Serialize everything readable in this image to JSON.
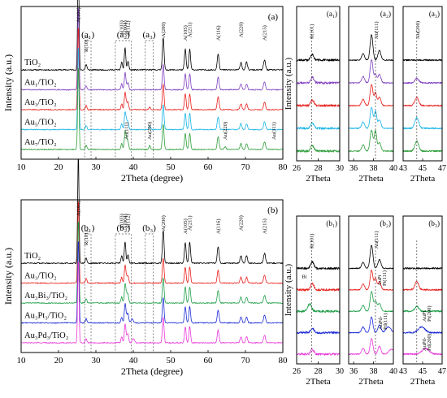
{
  "chart_data": [
    {
      "id": "a-main",
      "type": "line",
      "panel_label": "(a)",
      "xlabel": "2Theta (degree)",
      "ylabel": "Intensity (a.u.)",
      "xlim": [
        10,
        80
      ],
      "xticks": [
        "10",
        "20",
        "30",
        "40",
        "50",
        "60",
        "70",
        "80"
      ],
      "series": [
        {
          "name": "TiO₂",
          "color": "#000000"
        },
        {
          "name": "Au₁/TiO₂",
          "color": "#7f3fbf"
        },
        {
          "name": "Au₃/TiO₂",
          "color": "#e8201c"
        },
        {
          "name": "Au₅/TiO₂",
          "color": "#17b3e6"
        },
        {
          "name": "Au₇/TiO₂",
          "color": "#2e9e3a"
        }
      ],
      "region_labels": [
        "(a₁)",
        "(a₂)",
        "(a₃)"
      ],
      "regions": [
        [
          27,
          28.7
        ],
        [
          35.2,
          39.5
        ],
        [
          43.2,
          45.3
        ]
      ],
      "peaks": [
        {
          "label": "A(101)",
          "x": 25.3
        },
        {
          "label": "R(101)",
          "x": 27.4
        },
        {
          "label": "A(103)",
          "x": 36.9
        },
        {
          "label": "A(004)",
          "x": 37.8
        },
        {
          "label": "A(112)",
          "x": 38.6
        },
        {
          "label": "A(200)",
          "x": 48.0
        },
        {
          "label": "A(105)",
          "x": 53.9
        },
        {
          "label": "A(211)",
          "x": 55.1
        },
        {
          "label": "A(116)",
          "x": 62.7
        },
        {
          "label": "A(220)",
          "x": 68.8
        },
        {
          "label": "A(215)",
          "x": 75.1
        }
      ],
      "sub_peaks": [
        {
          "label": "Au(111)",
          "x": 38.2
        },
        {
          "label": "Au(200)",
          "x": 44.4
        },
        {
          "label": "Au(220)",
          "x": 64.6
        },
        {
          "label": "Au(311)",
          "x": 77.6
        }
      ]
    },
    {
      "id": "a1",
      "type": "line",
      "panel_label": "(a₁)",
      "xlabel": "2Theta",
      "ylabel": "Intensity (a.u.)",
      "xlim": [
        26,
        30
      ],
      "xticks": [
        "26",
        "28",
        "30"
      ],
      "peak_label": "R(101)",
      "marker_x": 27.4
    },
    {
      "id": "a2",
      "type": "line",
      "panel_label": "(a₂)",
      "xlabel": "2Theta",
      "ylabel": "",
      "xlim": [
        35.5,
        40
      ],
      "xticks": [
        "36",
        "38",
        "40"
      ],
      "peak_label": "Au(111)",
      "marker_x": 38.2
    },
    {
      "id": "a3",
      "type": "line",
      "panel_label": "(a₃)",
      "xlabel": "2Theta",
      "ylabel": "",
      "xlim": [
        43,
        47
      ],
      "xticks": [
        "43",
        "45",
        "47"
      ],
      "peak_label": "Au(200)",
      "marker_x": 44.4
    },
    {
      "id": "b-main",
      "type": "line",
      "panel_label": "(b)",
      "xlabel": "2Theta (degree)",
      "ylabel": "Intensity (a.u.)",
      "xlim": [
        10,
        80
      ],
      "xticks": [
        "10",
        "20",
        "30",
        "40",
        "50",
        "60",
        "70",
        "80"
      ],
      "series": [
        {
          "name": "TiO₂",
          "color": "#000000"
        },
        {
          "name": "Au₃/TiO₂",
          "color": "#e8201c"
        },
        {
          "name": "Au₃Bi₃/TiO₂",
          "color": "#1f9e48"
        },
        {
          "name": "Au₃Pt₃/TiO₂",
          "color": "#1c2bd6"
        },
        {
          "name": "Au₃Pd₃/TiO₂",
          "color": "#e836d8"
        }
      ],
      "region_labels": [
        "(b₁)",
        "(b₂)",
        "(b₃)"
      ],
      "regions": [
        [
          27,
          28.7
        ],
        [
          35.2,
          39.5
        ],
        [
          43.2,
          45.3
        ]
      ],
      "peaks": [
        {
          "label": "A(101)",
          "x": 25.3
        },
        {
          "label": "R(101)",
          "x": 27.4
        },
        {
          "label": "A(103)",
          "x": 36.9
        },
        {
          "label": "A(004)",
          "x": 37.8
        },
        {
          "label": "A(112)",
          "x": 38.6
        },
        {
          "label": "A(200)",
          "x": 48.0
        },
        {
          "label": "A(105)",
          "x": 53.9
        },
        {
          "label": "A(211)",
          "x": 55.1
        },
        {
          "label": "A(116)",
          "x": 62.7
        },
        {
          "label": "A(220)",
          "x": 68.8
        },
        {
          "label": "A(215)",
          "x": 75.1
        }
      ]
    },
    {
      "id": "b1",
      "type": "line",
      "panel_label": "(b₁)",
      "xlabel": "2Theta",
      "ylabel": "Intensity (a.u.)",
      "xlim": [
        26,
        30
      ],
      "xticks": [
        "26",
        "28",
        "30"
      ],
      "peak_label": "R(101)",
      "extra_label": "Bi",
      "marker_x": 27.4
    },
    {
      "id": "b2",
      "type": "line",
      "panel_label": "(b₂)",
      "xlabel": "2Theta",
      "ylabel": "",
      "xlim": [
        35.5,
        40
      ],
      "xticks": [
        "36",
        "38",
        "40"
      ],
      "peak_label": "Au(111)",
      "extra_labels": [
        "AuPt",
        "Pt(111)",
        "AuPd-",
        "Pd(111)"
      ],
      "marker_x": 38.2
    },
    {
      "id": "b3",
      "type": "line",
      "panel_label": "(b₃)",
      "xlabel": "2Theta",
      "ylabel": "",
      "xlim": [
        43,
        47
      ],
      "xticks": [
        "43",
        "45",
        "47"
      ],
      "extra_labels": [
        "AuPt",
        "Pt(200)",
        "AuPd-",
        "Pd(200)"
      ],
      "marker_x": 44.4
    }
  ]
}
